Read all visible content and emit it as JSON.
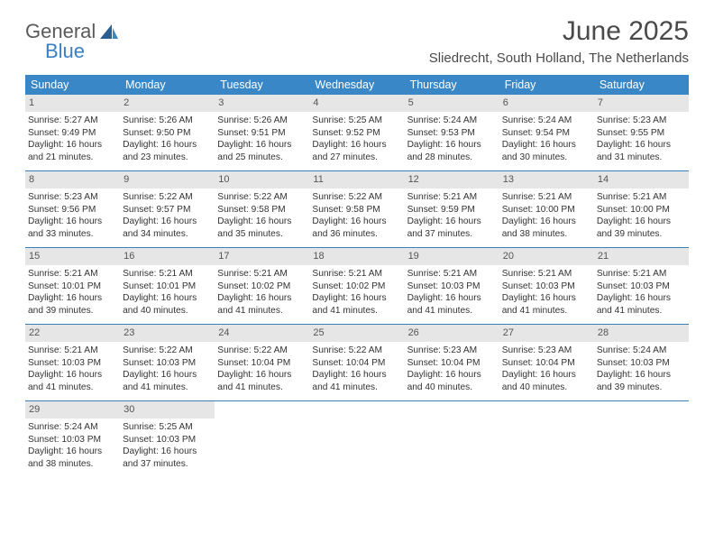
{
  "logo": {
    "word1": "General",
    "word2": "Blue"
  },
  "header": {
    "title": "June 2025",
    "subtitle": "Sliedrecht, South Holland, The Netherlands"
  },
  "colors": {
    "header_bg": "#3a87c7",
    "row_border": "#3a7fb5",
    "daynum_bg": "#e6e6e6",
    "logo_gray": "#5a5a5a",
    "logo_blue": "#3a7fc4"
  },
  "day_names": [
    "Sunday",
    "Monday",
    "Tuesday",
    "Wednesday",
    "Thursday",
    "Friday",
    "Saturday"
  ],
  "weeks": [
    [
      {
        "n": "1",
        "sunrise": "Sunrise: 5:27 AM",
        "sunset": "Sunset: 9:49 PM",
        "daylight": "Daylight: 16 hours and 21 minutes."
      },
      {
        "n": "2",
        "sunrise": "Sunrise: 5:26 AM",
        "sunset": "Sunset: 9:50 PM",
        "daylight": "Daylight: 16 hours and 23 minutes."
      },
      {
        "n": "3",
        "sunrise": "Sunrise: 5:26 AM",
        "sunset": "Sunset: 9:51 PM",
        "daylight": "Daylight: 16 hours and 25 minutes."
      },
      {
        "n": "4",
        "sunrise": "Sunrise: 5:25 AM",
        "sunset": "Sunset: 9:52 PM",
        "daylight": "Daylight: 16 hours and 27 minutes."
      },
      {
        "n": "5",
        "sunrise": "Sunrise: 5:24 AM",
        "sunset": "Sunset: 9:53 PM",
        "daylight": "Daylight: 16 hours and 28 minutes."
      },
      {
        "n": "6",
        "sunrise": "Sunrise: 5:24 AM",
        "sunset": "Sunset: 9:54 PM",
        "daylight": "Daylight: 16 hours and 30 minutes."
      },
      {
        "n": "7",
        "sunrise": "Sunrise: 5:23 AM",
        "sunset": "Sunset: 9:55 PM",
        "daylight": "Daylight: 16 hours and 31 minutes."
      }
    ],
    [
      {
        "n": "8",
        "sunrise": "Sunrise: 5:23 AM",
        "sunset": "Sunset: 9:56 PM",
        "daylight": "Daylight: 16 hours and 33 minutes."
      },
      {
        "n": "9",
        "sunrise": "Sunrise: 5:22 AM",
        "sunset": "Sunset: 9:57 PM",
        "daylight": "Daylight: 16 hours and 34 minutes."
      },
      {
        "n": "10",
        "sunrise": "Sunrise: 5:22 AM",
        "sunset": "Sunset: 9:58 PM",
        "daylight": "Daylight: 16 hours and 35 minutes."
      },
      {
        "n": "11",
        "sunrise": "Sunrise: 5:22 AM",
        "sunset": "Sunset: 9:58 PM",
        "daylight": "Daylight: 16 hours and 36 minutes."
      },
      {
        "n": "12",
        "sunrise": "Sunrise: 5:21 AM",
        "sunset": "Sunset: 9:59 PM",
        "daylight": "Daylight: 16 hours and 37 minutes."
      },
      {
        "n": "13",
        "sunrise": "Sunrise: 5:21 AM",
        "sunset": "Sunset: 10:00 PM",
        "daylight": "Daylight: 16 hours and 38 minutes."
      },
      {
        "n": "14",
        "sunrise": "Sunrise: 5:21 AM",
        "sunset": "Sunset: 10:00 PM",
        "daylight": "Daylight: 16 hours and 39 minutes."
      }
    ],
    [
      {
        "n": "15",
        "sunrise": "Sunrise: 5:21 AM",
        "sunset": "Sunset: 10:01 PM",
        "daylight": "Daylight: 16 hours and 39 minutes."
      },
      {
        "n": "16",
        "sunrise": "Sunrise: 5:21 AM",
        "sunset": "Sunset: 10:01 PM",
        "daylight": "Daylight: 16 hours and 40 minutes."
      },
      {
        "n": "17",
        "sunrise": "Sunrise: 5:21 AM",
        "sunset": "Sunset: 10:02 PM",
        "daylight": "Daylight: 16 hours and 41 minutes."
      },
      {
        "n": "18",
        "sunrise": "Sunrise: 5:21 AM",
        "sunset": "Sunset: 10:02 PM",
        "daylight": "Daylight: 16 hours and 41 minutes."
      },
      {
        "n": "19",
        "sunrise": "Sunrise: 5:21 AM",
        "sunset": "Sunset: 10:03 PM",
        "daylight": "Daylight: 16 hours and 41 minutes."
      },
      {
        "n": "20",
        "sunrise": "Sunrise: 5:21 AM",
        "sunset": "Sunset: 10:03 PM",
        "daylight": "Daylight: 16 hours and 41 minutes."
      },
      {
        "n": "21",
        "sunrise": "Sunrise: 5:21 AM",
        "sunset": "Sunset: 10:03 PM",
        "daylight": "Daylight: 16 hours and 41 minutes."
      }
    ],
    [
      {
        "n": "22",
        "sunrise": "Sunrise: 5:21 AM",
        "sunset": "Sunset: 10:03 PM",
        "daylight": "Daylight: 16 hours and 41 minutes."
      },
      {
        "n": "23",
        "sunrise": "Sunrise: 5:22 AM",
        "sunset": "Sunset: 10:03 PM",
        "daylight": "Daylight: 16 hours and 41 minutes."
      },
      {
        "n": "24",
        "sunrise": "Sunrise: 5:22 AM",
        "sunset": "Sunset: 10:04 PM",
        "daylight": "Daylight: 16 hours and 41 minutes."
      },
      {
        "n": "25",
        "sunrise": "Sunrise: 5:22 AM",
        "sunset": "Sunset: 10:04 PM",
        "daylight": "Daylight: 16 hours and 41 minutes."
      },
      {
        "n": "26",
        "sunrise": "Sunrise: 5:23 AM",
        "sunset": "Sunset: 10:04 PM",
        "daylight": "Daylight: 16 hours and 40 minutes."
      },
      {
        "n": "27",
        "sunrise": "Sunrise: 5:23 AM",
        "sunset": "Sunset: 10:04 PM",
        "daylight": "Daylight: 16 hours and 40 minutes."
      },
      {
        "n": "28",
        "sunrise": "Sunrise: 5:24 AM",
        "sunset": "Sunset: 10:03 PM",
        "daylight": "Daylight: 16 hours and 39 minutes."
      }
    ],
    [
      {
        "n": "29",
        "sunrise": "Sunrise: 5:24 AM",
        "sunset": "Sunset: 10:03 PM",
        "daylight": "Daylight: 16 hours and 38 minutes."
      },
      {
        "n": "30",
        "sunrise": "Sunrise: 5:25 AM",
        "sunset": "Sunset: 10:03 PM",
        "daylight": "Daylight: 16 hours and 37 minutes."
      },
      null,
      null,
      null,
      null,
      null
    ]
  ]
}
